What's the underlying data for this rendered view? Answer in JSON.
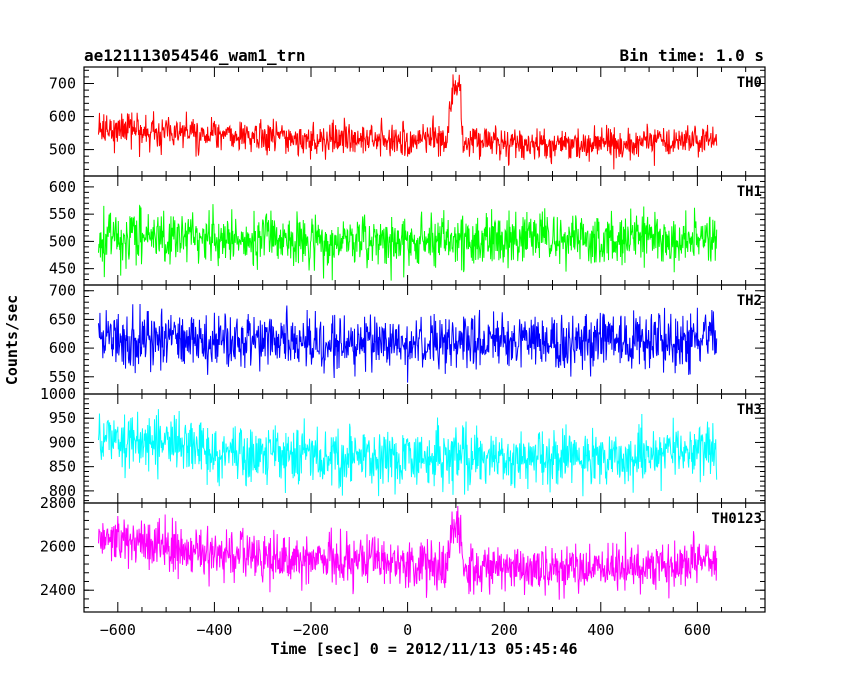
{
  "header": {
    "title_left": "ae121113054546_wam1_trn",
    "title_right": "Bin time: 1.0 s"
  },
  "chart_data": {
    "type": "line",
    "title": "ae121113054546_wam1_trn",
    "subtitle": "Bin time: 1.0 s",
    "xlabel": "Time [sec] 0 = 2012/11/13 05:45:46",
    "ylabel": "Counts/sec",
    "xlim": [
      -670,
      740
    ],
    "x_ticks": [
      -600,
      -400,
      -200,
      0,
      200,
      400,
      600
    ],
    "x_range": [
      -640,
      640
    ],
    "bin_time": 1.0,
    "grid": false,
    "panels": [
      {
        "name": "TH0",
        "color": "#ff0000",
        "ylim": [
          420,
          750
        ],
        "y_ticks": [
          500,
          600,
          700
        ],
        "mean_profile": [
          [
            -640,
            565
          ],
          [
            -560,
            560
          ],
          [
            -400,
            545
          ],
          [
            -200,
            535
          ],
          [
            0,
            530
          ],
          [
            80,
            535
          ],
          [
            95,
            690
          ],
          [
            110,
            690
          ],
          [
            115,
            525
          ],
          [
            300,
            520
          ],
          [
            500,
            522
          ],
          [
            640,
            530
          ]
        ],
        "noise_std": 25,
        "burst": {
          "start": 93,
          "end": 112,
          "level": 690
        }
      },
      {
        "name": "TH1",
        "color": "#00ff00",
        "ylim": [
          420,
          620
        ],
        "y_ticks": [
          450,
          500,
          550,
          600
        ],
        "mean_profile": [
          [
            -640,
            510
          ],
          [
            -400,
            505
          ],
          [
            -200,
            500
          ],
          [
            0,
            500
          ],
          [
            300,
            502
          ],
          [
            640,
            505
          ]
        ],
        "noise_std": 24
      },
      {
        "name": "TH2",
        "color": "#0000ff",
        "ylim": [
          520,
          710
        ],
        "y_ticks": [
          550,
          600,
          650,
          700
        ],
        "mean_profile": [
          [
            -640,
            615
          ],
          [
            -400,
            612
          ],
          [
            -200,
            610
          ],
          [
            0,
            610
          ],
          [
            300,
            610
          ],
          [
            640,
            615
          ]
        ],
        "noise_std": 25
      },
      {
        "name": "TH3",
        "color": "#00ffff",
        "ylim": [
          775,
          1000
        ],
        "y_ticks": [
          800,
          850,
          900,
          950,
          1000
        ],
        "mean_profile": [
          [
            -640,
            910
          ],
          [
            -500,
            905
          ],
          [
            -400,
            880
          ],
          [
            -200,
            870
          ],
          [
            0,
            865
          ],
          [
            300,
            868
          ],
          [
            640,
            880
          ]
        ],
        "noise_std": 30
      },
      {
        "name": "TH0123",
        "color": "#ff00ff",
        "ylim": [
          2300,
          2800
        ],
        "y_ticks": [
          2400,
          2600,
          2800
        ],
        "mean_profile": [
          [
            -640,
            2650
          ],
          [
            -560,
            2620
          ],
          [
            -400,
            2570
          ],
          [
            -200,
            2540
          ],
          [
            0,
            2520
          ],
          [
            80,
            2520
          ],
          [
            95,
            2680
          ],
          [
            110,
            2680
          ],
          [
            115,
            2510
          ],
          [
            300,
            2500
          ],
          [
            500,
            2505
          ],
          [
            640,
            2540
          ]
        ],
        "noise_std": 55,
        "burst": {
          "start": 93,
          "end": 112,
          "level": 2680
        }
      }
    ]
  }
}
